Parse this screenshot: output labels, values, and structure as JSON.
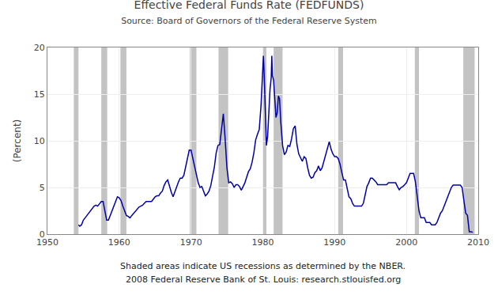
{
  "chart_data": {
    "type": "line",
    "title": "Effective Federal Funds Rate (FEDFUNDS)",
    "subtitle": "Source: Board of Governors of the Federal Reserve System",
    "ylabel": "(Percent)",
    "annotations": [
      "Shaded areas indicate US recessions as determined by the NBER.",
      "2008 Federal Reserve Bank of St. Louis: research.stlouisfed.org"
    ],
    "xlim": [
      1950,
      2010
    ],
    "ylim": [
      0,
      20
    ],
    "xticks": [
      1950,
      1960,
      1970,
      1980,
      1990,
      2000,
      2010
    ],
    "yticks": [
      0,
      5,
      10,
      15,
      20
    ],
    "grid": true,
    "color": "#0000aa",
    "recessions": {
      "color": "#aaaaaa",
      "spans": [
        [
          1953.67,
          1954.33
        ],
        [
          1957.5,
          1958.33
        ],
        [
          1960.17,
          1961.0
        ],
        [
          1969.83,
          1970.75
        ],
        [
          1973.83,
          1975.17
        ],
        [
          1980.0,
          1980.5
        ],
        [
          1981.5,
          1982.75
        ],
        [
          1990.5,
          1991.17
        ],
        [
          2001.17,
          2001.75
        ],
        [
          2007.92,
          2009.5
        ]
      ]
    },
    "x": [
      1954.33,
      1954.5,
      1954.75,
      1955.0,
      1955.25,
      1955.5,
      1955.75,
      1956.0,
      1956.25,
      1956.5,
      1956.75,
      1957.0,
      1957.25,
      1957.5,
      1957.75,
      1958.0,
      1958.25,
      1958.5,
      1958.75,
      1959.0,
      1959.25,
      1959.5,
      1959.75,
      1960.0,
      1960.25,
      1960.5,
      1960.75,
      1961.0,
      1961.25,
      1961.5,
      1961.75,
      1962.0,
      1962.25,
      1962.5,
      1962.75,
      1963.0,
      1963.25,
      1963.5,
      1963.75,
      1964.0,
      1964.25,
      1964.5,
      1964.75,
      1965.0,
      1965.25,
      1965.5,
      1965.75,
      1966.0,
      1966.25,
      1966.5,
      1966.75,
      1967.0,
      1967.25,
      1967.5,
      1967.75,
      1968.0,
      1968.25,
      1968.5,
      1968.75,
      1969.0,
      1969.25,
      1969.5,
      1969.75,
      1970.0,
      1970.25,
      1970.5,
      1970.75,
      1971.0,
      1971.25,
      1971.5,
      1971.75,
      1972.0,
      1972.25,
      1972.5,
      1972.75,
      1973.0,
      1973.25,
      1973.5,
      1973.75,
      1974.0,
      1974.25,
      1974.5,
      1974.75,
      1975.0,
      1975.25,
      1975.5,
      1975.75,
      1976.0,
      1976.25,
      1976.5,
      1976.75,
      1977.0,
      1977.25,
      1977.5,
      1977.75,
      1978.0,
      1978.25,
      1978.5,
      1978.75,
      1979.0,
      1979.25,
      1979.5,
      1979.75,
      1980.0,
      1980.08,
      1980.17,
      1980.25,
      1980.33,
      1980.42,
      1980.5,
      1980.67,
      1980.83,
      1981.0,
      1981.17,
      1981.25,
      1981.33,
      1981.5,
      1981.58,
      1981.67,
      1981.75,
      1981.83,
      1982.0,
      1982.17,
      1982.33,
      1982.5,
      1982.67,
      1982.75,
      1983.0,
      1983.25,
      1983.5,
      1983.75,
      1984.0,
      1984.25,
      1984.5,
      1984.75,
      1985.0,
      1985.25,
      1985.5,
      1985.75,
      1986.0,
      1986.25,
      1986.5,
      1986.75,
      1987.0,
      1987.25,
      1987.5,
      1987.75,
      1988.0,
      1988.25,
      1988.5,
      1988.75,
      1989.0,
      1989.25,
      1989.5,
      1989.75,
      1990.0,
      1990.25,
      1990.5,
      1990.75,
      1991.0,
      1991.25,
      1991.5,
      1991.75,
      1992.0,
      1992.25,
      1992.5,
      1992.75,
      1993.0,
      1993.25,
      1993.5,
      1993.75,
      1994.0,
      1994.25,
      1994.5,
      1994.75,
      1995.0,
      1995.25,
      1995.5,
      1995.75,
      1996.0,
      1996.25,
      1996.5,
      1996.75,
      1997.0,
      1997.25,
      1997.5,
      1997.75,
      1998.0,
      1998.25,
      1998.5,
      1998.75,
      1999.0,
      1999.25,
      1999.5,
      1999.75,
      2000.0,
      2000.25,
      2000.5,
      2000.75,
      2001.0,
      2001.25,
      2001.5,
      2001.75,
      2002.0,
      2002.25,
      2002.5,
      2002.75,
      2003.0,
      2003.25,
      2003.5,
      2003.75,
      2004.0,
      2004.25,
      2004.5,
      2004.75,
      2005.0,
      2005.25,
      2005.5,
      2005.75,
      2006.0,
      2006.25,
      2006.5,
      2006.75,
      2007.0,
      2007.25,
      2007.5,
      2007.75,
      2008.0,
      2008.25,
      2008.5,
      2008.75,
      2009.0,
      2009.25
    ],
    "values": [
      1.0,
      0.85,
      1.0,
      1.5,
      1.75,
      2.0,
      2.3,
      2.5,
      2.75,
      3.0,
      3.1,
      3.0,
      3.25,
      3.5,
      3.5,
      2.5,
      1.5,
      1.5,
      2.0,
      2.5,
      3.0,
      3.5,
      4.0,
      3.9,
      3.6,
      3.0,
      2.5,
      2.0,
      1.9,
      1.75,
      2.0,
      2.25,
      2.5,
      2.75,
      2.9,
      3.0,
      3.1,
      3.3,
      3.5,
      3.5,
      3.5,
      3.5,
      3.75,
      4.0,
      4.1,
      4.1,
      4.4,
      4.6,
      5.2,
      5.6,
      5.8,
      5.1,
      4.5,
      4.0,
      4.6,
      5.1,
      5.6,
      6.0,
      6.0,
      6.3,
      7.2,
      8.2,
      9.0,
      9.0,
      8.1,
      7.2,
      6.5,
      5.5,
      5.0,
      5.1,
      4.6,
      4.1,
      4.3,
      4.6,
      5.2,
      6.1,
      7.2,
      8.7,
      9.5,
      9.6,
      11.3,
      12.9,
      10.2,
      7.1,
      5.5,
      5.6,
      5.4,
      5.0,
      5.3,
      5.3,
      5.1,
      4.7,
      5.1,
      5.5,
      6.1,
      6.7,
      7.0,
      7.7,
      8.7,
      10.1,
      10.7,
      11.2,
      13.8,
      17.6,
      19.1,
      17.5,
      15.5,
      13.0,
      10.0,
      9.5,
      10.5,
      13.5,
      15.5,
      16.8,
      19.1,
      17.0,
      16.5,
      15.5,
      14.7,
      13.5,
      12.5,
      13.0,
      14.8,
      14.5,
      12.0,
      10.5,
      9.5,
      8.5,
      8.8,
      9.5,
      9.4,
      10.2,
      11.3,
      11.6,
      9.6,
      8.6,
      8.2,
      7.8,
      8.3,
      8.1,
      7.1,
      6.3,
      6.0,
      6.1,
      6.6,
      6.8,
      7.3,
      6.8,
      7.1,
      7.8,
      8.4,
      9.1,
      9.9,
      9.1,
      8.6,
      8.3,
      8.3,
      8.1,
      7.5,
      6.6,
      5.8,
      5.8,
      4.8,
      4.0,
      3.8,
      3.3,
      3.0,
      3.0,
      3.0,
      3.0,
      3.0,
      3.3,
      4.3,
      5.1,
      5.5,
      6.0,
      6.0,
      5.8,
      5.6,
      5.3,
      5.3,
      5.3,
      5.3,
      5.3,
      5.3,
      5.5,
      5.5,
      5.5,
      5.5,
      5.5,
      5.1,
      4.75,
      5.0,
      5.1,
      5.3,
      5.5,
      6.0,
      6.5,
      6.5,
      6.5,
      5.6,
      3.8,
      2.5,
      1.75,
      1.75,
      1.75,
      1.25,
      1.25,
      1.25,
      1.0,
      1.0,
      1.0,
      1.25,
      1.75,
      2.25,
      2.5,
      3.0,
      3.5,
      4.0,
      4.5,
      5.0,
      5.25,
      5.25,
      5.25,
      5.25,
      5.25,
      5.0,
      3.5,
      2.25,
      2.0,
      0.25,
      0.25,
      0.2
    ]
  }
}
